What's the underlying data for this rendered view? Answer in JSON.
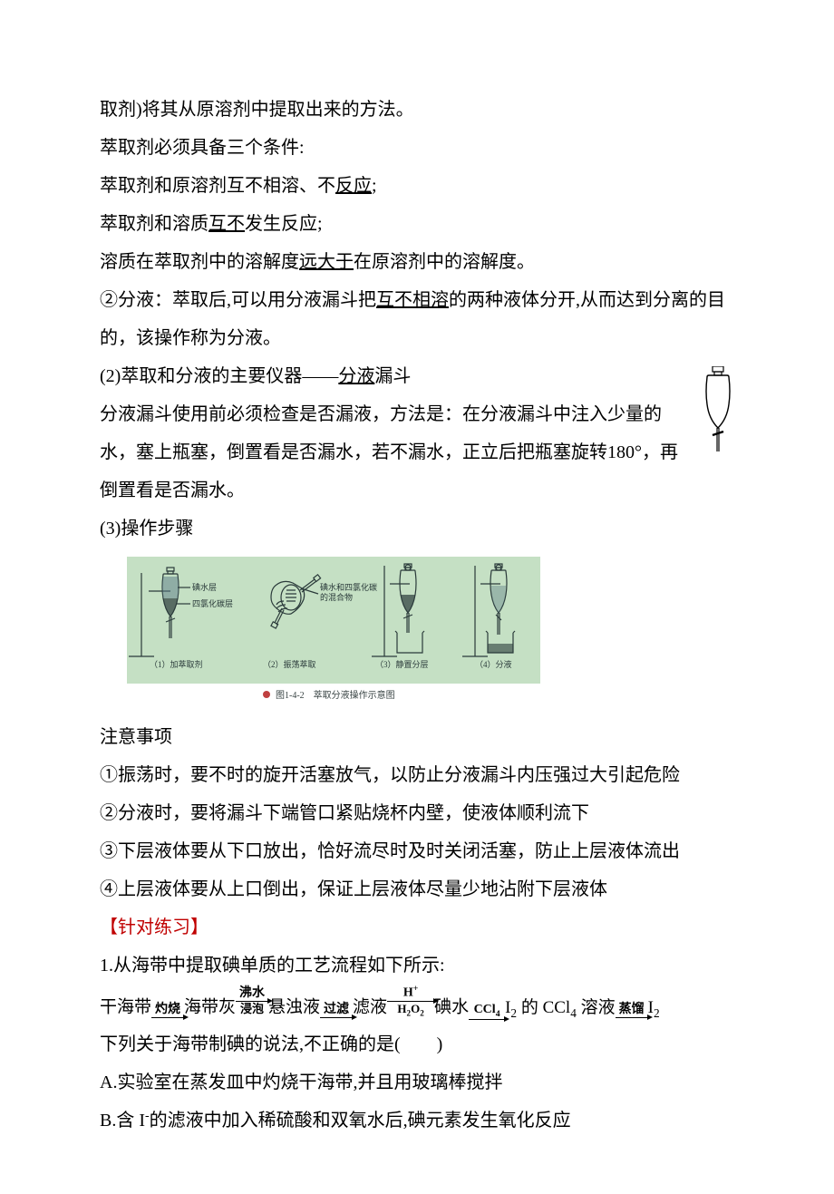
{
  "intro": {
    "line1": "取剂)将其从原溶剂中提取出来的方法。",
    "line2": "萃取剂必须具备三个条件:",
    "line3_a": "萃取剂和原溶剂互不相溶、不",
    "line3_u": "反应",
    "line3_b": ";",
    "line4_a": "萃取剂和溶质",
    "line4_u": "互不",
    "line4_b": "发生反应;",
    "line5_a": "溶质在萃取剂中的溶解度",
    "line5_u": "远大于",
    "line5_b": "在原溶剂中的溶解度。",
    "line6_a": "②分液：萃取后,可以用分液漏斗把",
    "line6_u": "互不相溶",
    "line6_b": "的两种液体分开,从而达到分离的目的，该操作称为分液。",
    "line7_a": "(2)萃取和分液的主要仪器——",
    "line7_u": "分液",
    "line7_b": "漏斗",
    "line8": "分液漏斗使用前必须检查是否漏液，方法是：在分液漏斗中注入少量的水，塞上瓶塞，倒置看是否漏水，若不漏水，正立后把瓶塞旋转180°，再倒置看是否漏水。",
    "line9": "(3)操作步骤"
  },
  "diagram": {
    "bg_color": "#c5e0c4",
    "label1a": "碘水层",
    "label1b": "四氯化碳层",
    "label2a": "碘水和四氯化碳",
    "label2b": "的混合物",
    "step1": "（1）加萃取剂",
    "step2": "（2）振荡萃取",
    "step3": "（3）静置分层",
    "step4": "（4）分液",
    "caption": "图1-4-2　萃取分液操作示意图"
  },
  "notes": {
    "head": "注意事项",
    "n1": "①振荡时，要不时的旋开活塞放气，以防止分液漏斗内压强过大引起危险",
    "n2": "②分液时，要将漏斗下端管口紧贴烧杯内壁，使液体顺利流下",
    "n3": "③下层液体要从下口放出，恰好流尽时及时关闭活塞，防止上层液体流出",
    "n4": "④上层液体要从上口倒出，保证上层液体尽量少地沾附下层液体"
  },
  "practice": {
    "head": "【针对练习】",
    "q1": "1.从海带中提取碘单质的工艺流程如下所示:",
    "flow": {
      "t1": "干海带",
      "a1_top": "灼烧",
      "t2": "海带灰",
      "a2_top": "沸水",
      "a2_bot": "浸泡",
      "t3": "悬浊液",
      "a3_top": "过滤",
      "t4": "滤液",
      "a4_top_html": "H<sup>+</sup>",
      "a4_bot_html": "H<sub>2</sub>O<sub>2</sub>",
      "t5": "碘水",
      "a5_top_html": "CCl<sub>4</sub>",
      "t6_html": "I<sub>2</sub> 的 CCl<sub>4</sub> 溶液",
      "a6_top": "蒸馏",
      "t7_html": "I<sub>2</sub>"
    },
    "q1_tail": "下列关于海带制碘的说法,不正确的是(　　)",
    "optA": "A.实验室在蒸发皿中灼烧干海带,并且用玻璃棒搅拌",
    "optB_html": "B.含 I<sup>-</sup>的滤液中加入稀硫酸和双氧水后,碘元素发生氧化反应"
  }
}
